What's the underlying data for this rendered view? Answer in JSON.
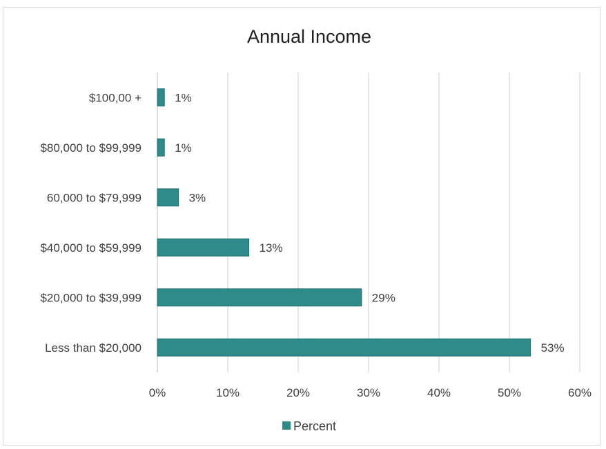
{
  "chart_data": {
    "type": "bar",
    "orientation": "horizontal",
    "title": "Annual Income",
    "xlabel": "",
    "ylabel": "",
    "categories": [
      "$100,00 +",
      "$80,000 to $99,999",
      "60,000 to $79,999",
      "$40,000 to $59,999",
      "$20,000 to $39,999",
      "Less than $20,000"
    ],
    "series": [
      {
        "name": "Percent",
        "values": [
          1,
          1,
          3,
          13,
          29,
          53
        ],
        "labels": [
          "1%",
          "1%",
          "3%",
          "13%",
          "29%",
          "53%"
        ]
      }
    ],
    "x_ticks": [
      "0%",
      "10%",
      "20%",
      "30%",
      "40%",
      "50%",
      "60%"
    ],
    "xlim": [
      0,
      60
    ],
    "grid": true,
    "legend": "bottom",
    "colors": {
      "bar": "#2e8b8a",
      "bar_edge": "#1f6f6e",
      "grid": "#cfcfdc"
    }
  }
}
